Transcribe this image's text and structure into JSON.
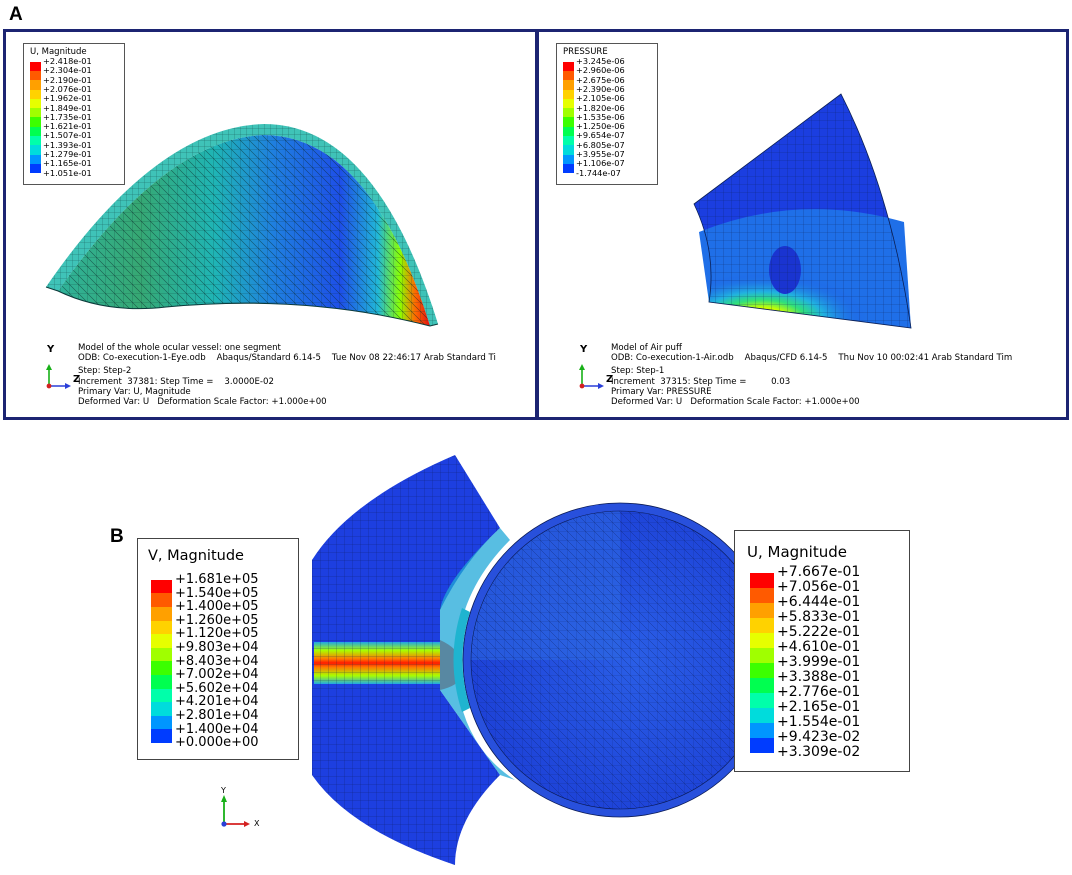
{
  "panels": {
    "a_label": "A",
    "b_label": "B"
  },
  "colors": {
    "frame": "#1c2472",
    "scale": [
      "#ff0000",
      "#ff5a00",
      "#ffa000",
      "#ffd200",
      "#e6ff00",
      "#a0ff00",
      "#3cff00",
      "#00ff50",
      "#00ffaa",
      "#00dcdc",
      "#0096ff",
      "#003cff",
      "#0000ff"
    ]
  },
  "panel_a_left": {
    "legend_title": "U, Magnitude",
    "legend_values": [
      "+2.418e-01",
      "+2.304e-01",
      "+2.190e-01",
      "+2.076e-01",
      "+1.962e-01",
      "+1.849e-01",
      "+1.735e-01",
      "+1.621e-01",
      "+1.507e-01",
      "+1.393e-01",
      "+1.279e-01",
      "+1.165e-01",
      "+1.051e-01"
    ],
    "info_lines": [
      "Model of the whole ocular vessel: one segment",
      "ODB: Co-execution-1-Eye.odb    Abaqus/Standard 6.14-5    Tue Nov 08 22:46:17 Arab Standard Ti",
      "",
      "Step: Step-2",
      "Increment  37381: Step Time =    3.0000E-02",
      "Primary Var: U, Magnitude",
      "Deformed Var: U   Deformation Scale Factor: +1.000e+00"
    ],
    "axis_y": "Y",
    "axis_z": "Z"
  },
  "panel_a_right": {
    "legend_title": "PRESSURE",
    "legend_values": [
      "+3.245e-06",
      "+2.960e-06",
      "+2.675e-06",
      "+2.390e-06",
      "+2.105e-06",
      "+1.820e-06",
      "+1.535e-06",
      "+1.250e-06",
      "+9.654e-07",
      "+6.805e-07",
      "+3.955e-07",
      "+1.106e-07",
      "-1.744e-07"
    ],
    "info_lines": [
      "Model of Air puff",
      "ODB: Co-execution-1-Air.odb    Abaqus/CFD 6.14-5    Thu Nov 10 00:02:41 Arab Standard Tim",
      "",
      "Step: Step-1",
      "Increment  37315: Step Time =         0.03",
      "Primary Var: PRESSURE",
      "Deformed Var: U   Deformation Scale Factor: +1.000e+00"
    ],
    "axis_y": "Y",
    "axis_z": "Z"
  },
  "panel_b": {
    "v_legend_title": "V, Magnitude",
    "v_legend_values": [
      "+1.681e+05",
      "+1.540e+05",
      "+1.400e+05",
      "+1.260e+05",
      "+1.120e+05",
      "+9.803e+04",
      "+8.403e+04",
      "+7.002e+04",
      "+5.602e+04",
      "+4.201e+04",
      "+2.801e+04",
      "+1.400e+04",
      "+0.000e+00"
    ],
    "u_legend_title": "U, Magnitude",
    "u_legend_values": [
      "+7.667e-01",
      "+7.056e-01",
      "+6.444e-01",
      "+5.833e-01",
      "+5.222e-01",
      "+4.610e-01",
      "+3.999e-01",
      "+3.388e-01",
      "+2.776e-01",
      "+2.165e-01",
      "+1.554e-01",
      "+9.423e-02",
      "+3.309e-02"
    ],
    "axis_y": "Y",
    "axis_x": "X"
  }
}
